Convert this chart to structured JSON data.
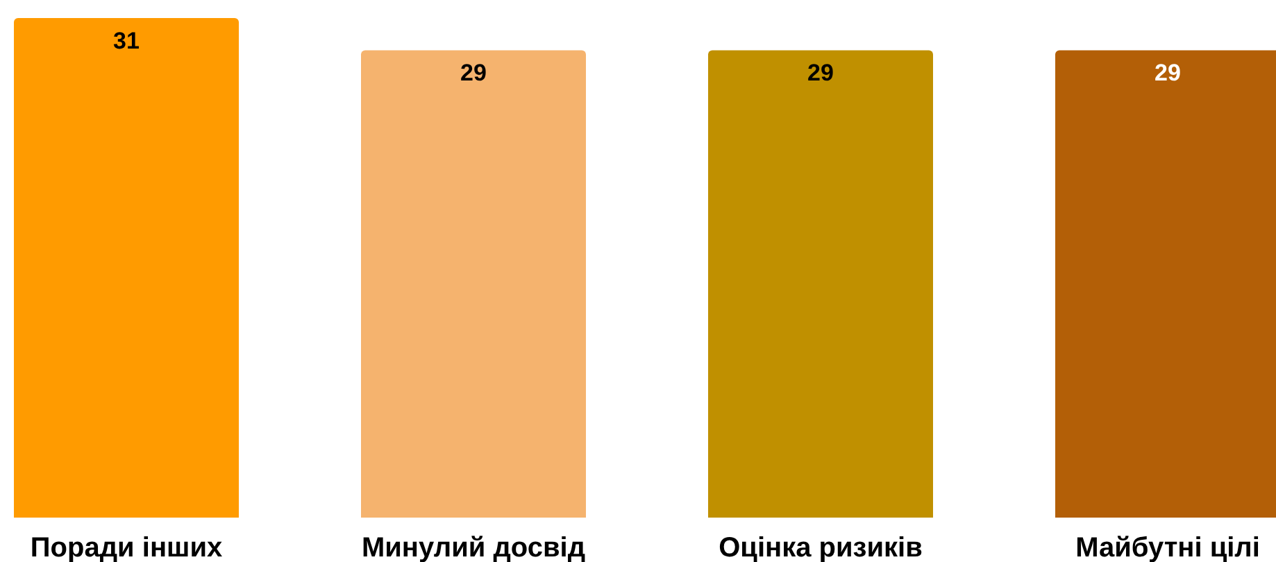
{
  "chart_data": {
    "type": "bar",
    "categories": [
      "Поради інших",
      "Минулий досвід",
      "Оцінка ризиків",
      "Майбутні цілі"
    ],
    "values": [
      31,
      29,
      29,
      29
    ],
    "colors": [
      "#ff9b00",
      "#f5b36e",
      "#c09000",
      "#b35f07"
    ],
    "data_labels": true
  }
}
